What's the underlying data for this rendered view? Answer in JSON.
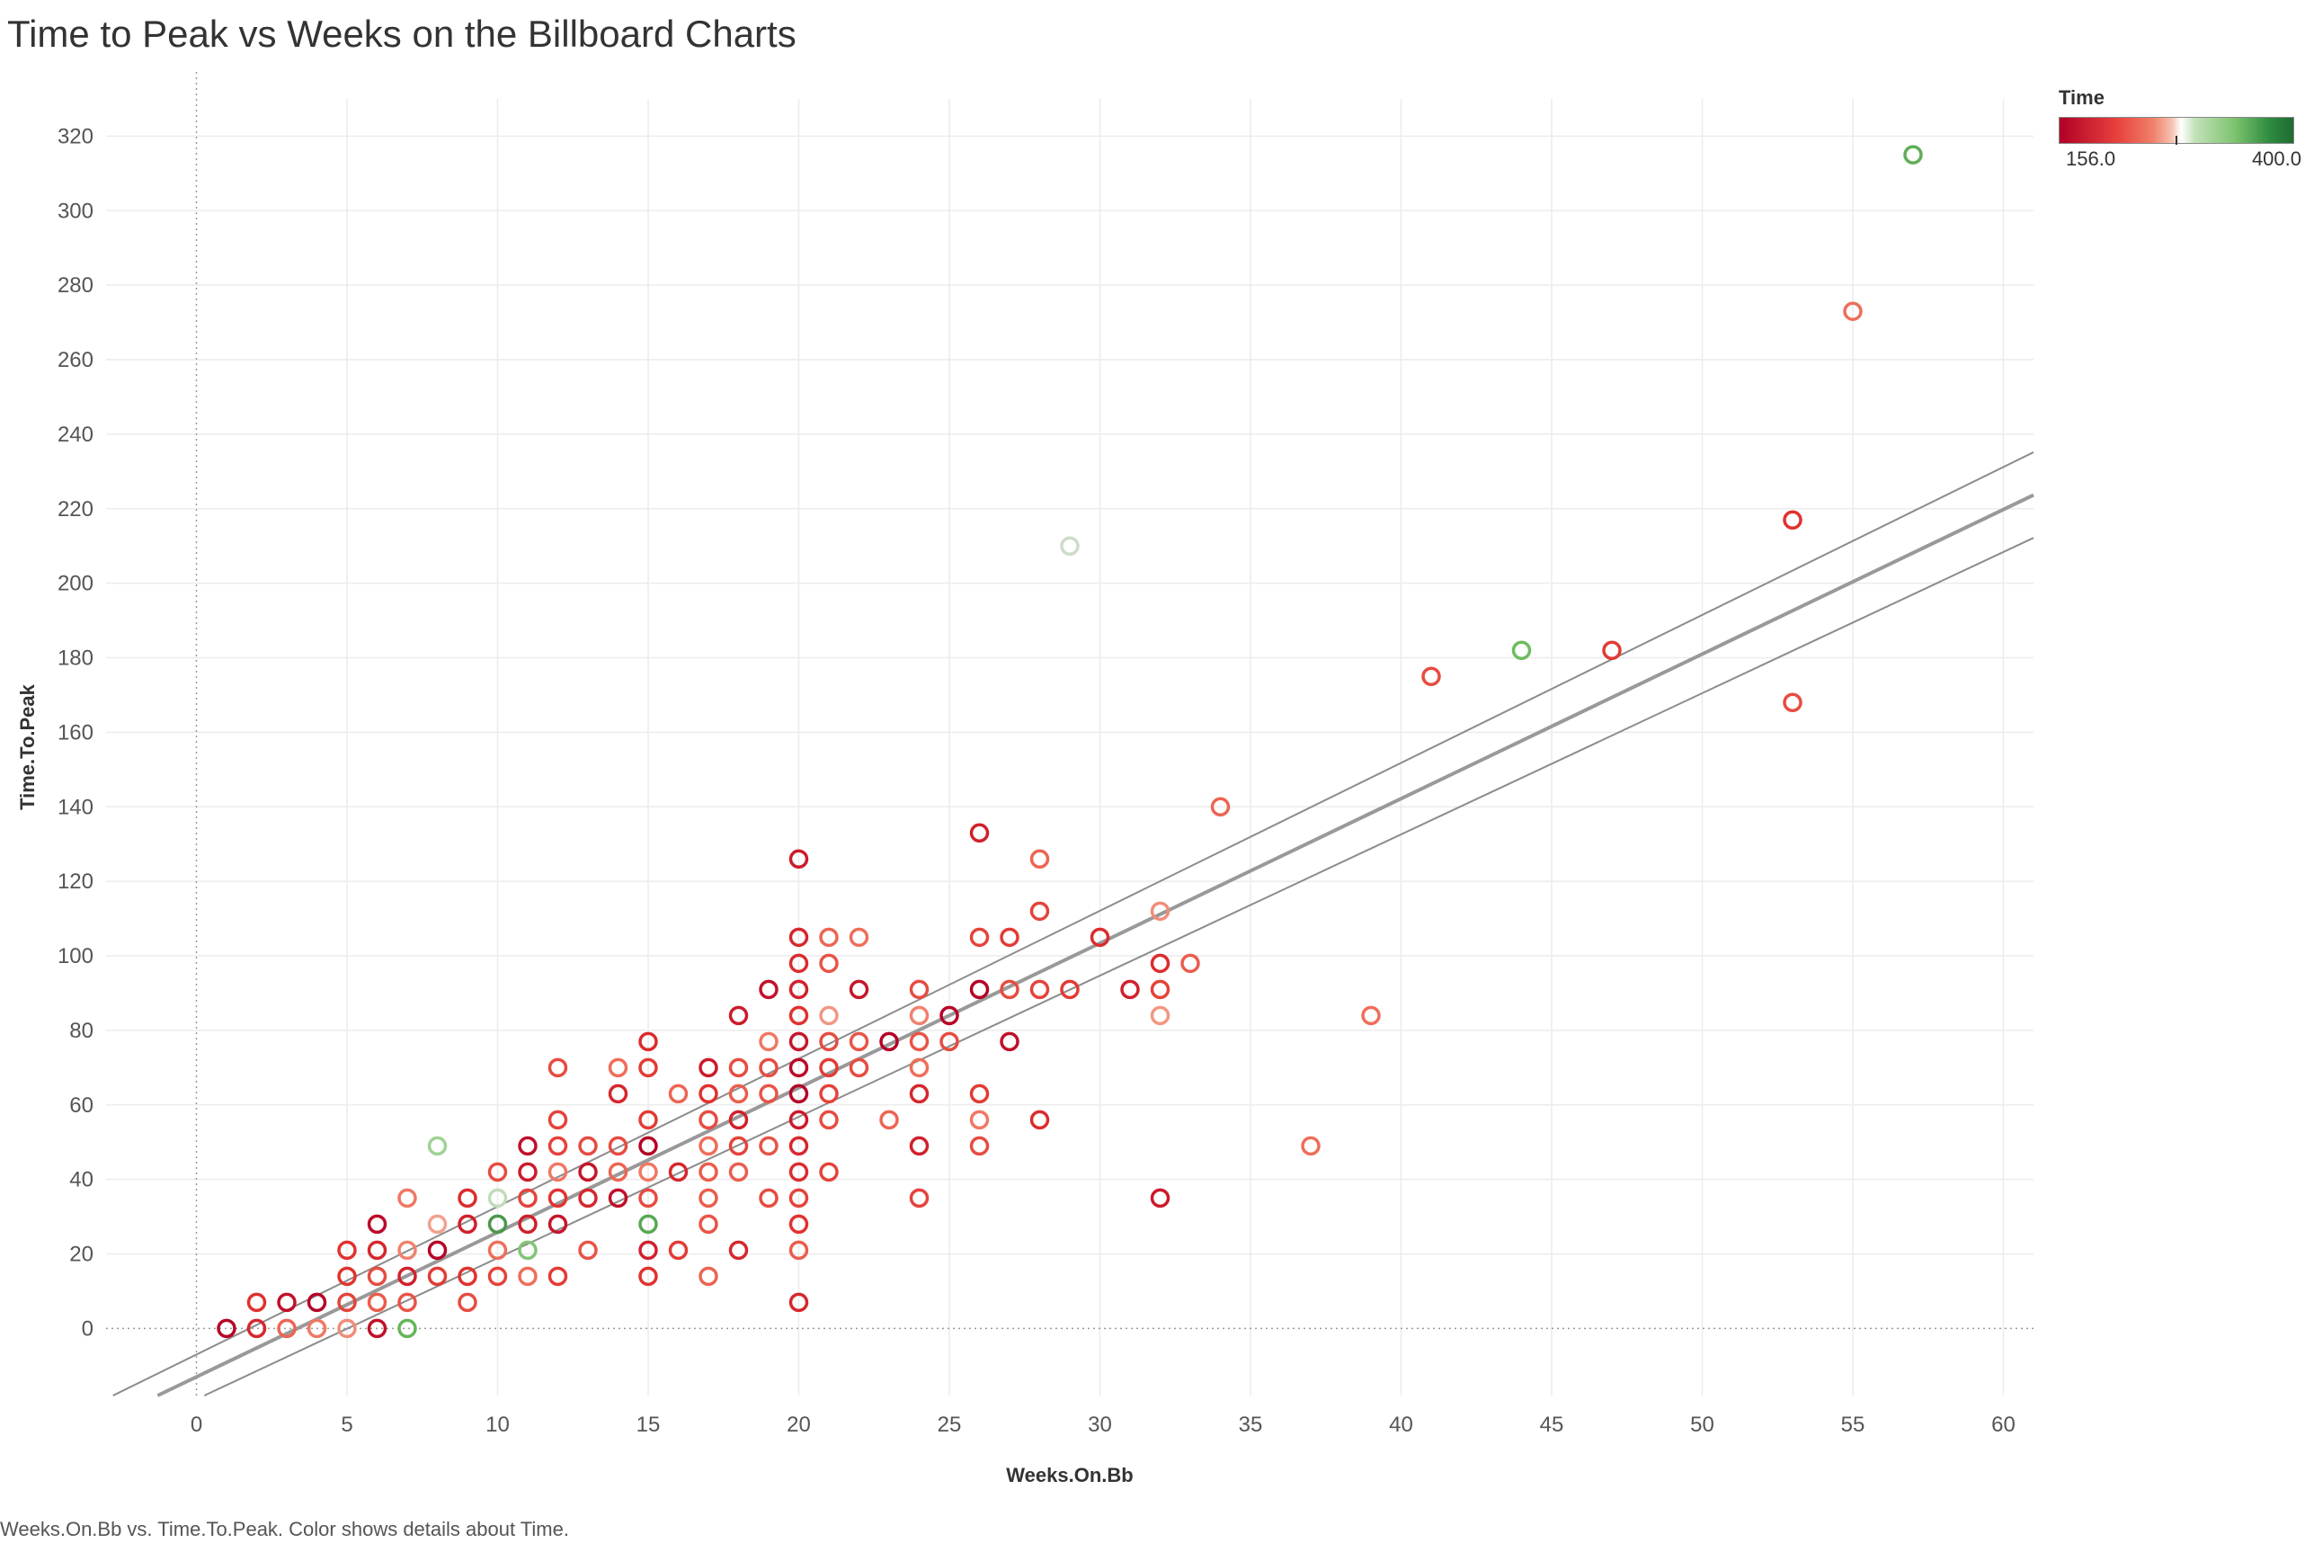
{
  "title": "Time to Peak vs Weeks on the Billboard Charts",
  "caption": "Weeks.On.Bb vs. Time.To.Peak.  Color shows details about Time.",
  "legend": {
    "title": "Time",
    "min_label": "156.0",
    "max_label": "400.0"
  },
  "chart_data": {
    "type": "scatter",
    "title": "Time to Peak vs Weeks on the Billboard Charts",
    "xlabel": "Weeks.On.Bb",
    "ylabel": "Time.To.Peak",
    "xlim": [
      -3,
      61
    ],
    "ylim": [
      -18,
      330
    ],
    "x_ticks": [
      0,
      5,
      10,
      15,
      20,
      25,
      30,
      35,
      40,
      45,
      50,
      55,
      60
    ],
    "y_ticks": [
      0,
      20,
      40,
      60,
      80,
      100,
      120,
      140,
      160,
      180,
      200,
      220,
      240,
      260,
      280,
      300,
      320
    ],
    "grid": true,
    "legend_position": "top-right",
    "color_scale": {
      "field": "Time",
      "min": 156.0,
      "max": 400.0,
      "low_color": "#b10026",
      "mid_color": "#ffffff",
      "high_color": "#1e6b32"
    },
    "trend_line": {
      "intercept": -13,
      "slope": 3.88
    },
    "confidence_band": {
      "upper": {
        "intercept": -7,
        "slope": 3.97
      },
      "lower": {
        "intercept": -19,
        "slope": 3.79
      }
    },
    "points": [
      {
        "x": 1,
        "y": 0,
        "time": 160
      },
      {
        "x": 2,
        "y": 7,
        "time": 200
      },
      {
        "x": 2,
        "y": 0,
        "time": 190
      },
      {
        "x": 3,
        "y": 7,
        "time": 170
      },
      {
        "x": 3,
        "y": 0,
        "time": 230
      },
      {
        "x": 4,
        "y": 7,
        "time": 160
      },
      {
        "x": 4,
        "y": 0,
        "time": 240
      },
      {
        "x": 5,
        "y": 21,
        "time": 200
      },
      {
        "x": 5,
        "y": 14,
        "time": 200
      },
      {
        "x": 5,
        "y": 7,
        "time": 210
      },
      {
        "x": 5,
        "y": 0,
        "time": 250
      },
      {
        "x": 6,
        "y": 28,
        "time": 165
      },
      {
        "x": 6,
        "y": 21,
        "time": 190
      },
      {
        "x": 6,
        "y": 14,
        "time": 215
      },
      {
        "x": 6,
        "y": 7,
        "time": 225
      },
      {
        "x": 6,
        "y": 0,
        "time": 170
      },
      {
        "x": 7,
        "y": 35,
        "time": 240
      },
      {
        "x": 7,
        "y": 21,
        "time": 245
      },
      {
        "x": 7,
        "y": 14,
        "time": 185
      },
      {
        "x": 7,
        "y": 7,
        "time": 220
      },
      {
        "x": 7,
        "y": 0,
        "time": 350
      },
      {
        "x": 8,
        "y": 49,
        "time": 320
      },
      {
        "x": 8,
        "y": 28,
        "time": 260
      },
      {
        "x": 8,
        "y": 21,
        "time": 160
      },
      {
        "x": 8,
        "y": 14,
        "time": 205
      },
      {
        "x": 9,
        "y": 35,
        "time": 195
      },
      {
        "x": 9,
        "y": 28,
        "time": 185
      },
      {
        "x": 9,
        "y": 14,
        "time": 200
      },
      {
        "x": 9,
        "y": 7,
        "time": 215
      },
      {
        "x": 10,
        "y": 42,
        "time": 215
      },
      {
        "x": 10,
        "y": 35,
        "time": 300
      },
      {
        "x": 10,
        "y": 28,
        "time": 370
      },
      {
        "x": 10,
        "y": 21,
        "time": 235
      },
      {
        "x": 10,
        "y": 14,
        "time": 210
      },
      {
        "x": 11,
        "y": 49,
        "time": 170
      },
      {
        "x": 11,
        "y": 42,
        "time": 180
      },
      {
        "x": 11,
        "y": 35,
        "time": 210
      },
      {
        "x": 11,
        "y": 28,
        "time": 185
      },
      {
        "x": 11,
        "y": 21,
        "time": 335
      },
      {
        "x": 11,
        "y": 14,
        "time": 235
      },
      {
        "x": 12,
        "y": 70,
        "time": 215
      },
      {
        "x": 12,
        "y": 56,
        "time": 210
      },
      {
        "x": 12,
        "y": 49,
        "time": 210
      },
      {
        "x": 12,
        "y": 42,
        "time": 240
      },
      {
        "x": 12,
        "y": 35,
        "time": 200
      },
      {
        "x": 12,
        "y": 28,
        "time": 175
      },
      {
        "x": 12,
        "y": 14,
        "time": 205
      },
      {
        "x": 13,
        "y": 49,
        "time": 215
      },
      {
        "x": 13,
        "y": 42,
        "time": 175
      },
      {
        "x": 13,
        "y": 35,
        "time": 190
      },
      {
        "x": 13,
        "y": 21,
        "time": 220
      },
      {
        "x": 14,
        "y": 70,
        "time": 235
      },
      {
        "x": 14,
        "y": 63,
        "time": 190
      },
      {
        "x": 14,
        "y": 49,
        "time": 215
      },
      {
        "x": 14,
        "y": 42,
        "time": 230
      },
      {
        "x": 14,
        "y": 35,
        "time": 170
      },
      {
        "x": 15,
        "y": 77,
        "time": 195
      },
      {
        "x": 15,
        "y": 70,
        "time": 205
      },
      {
        "x": 15,
        "y": 56,
        "time": 205
      },
      {
        "x": 15,
        "y": 49,
        "time": 158
      },
      {
        "x": 15,
        "y": 42,
        "time": 240
      },
      {
        "x": 15,
        "y": 35,
        "time": 215
      },
      {
        "x": 15,
        "y": 28,
        "time": 360
      },
      {
        "x": 15,
        "y": 21,
        "time": 185
      },
      {
        "x": 15,
        "y": 14,
        "time": 200
      },
      {
        "x": 16,
        "y": 63,
        "time": 230
      },
      {
        "x": 16,
        "y": 42,
        "time": 190
      },
      {
        "x": 16,
        "y": 21,
        "time": 205
      },
      {
        "x": 17,
        "y": 70,
        "time": 180
      },
      {
        "x": 17,
        "y": 63,
        "time": 200
      },
      {
        "x": 17,
        "y": 56,
        "time": 215
      },
      {
        "x": 17,
        "y": 49,
        "time": 235
      },
      {
        "x": 17,
        "y": 42,
        "time": 225
      },
      {
        "x": 17,
        "y": 35,
        "time": 225
      },
      {
        "x": 17,
        "y": 28,
        "time": 220
      },
      {
        "x": 17,
        "y": 14,
        "time": 230
      },
      {
        "x": 18,
        "y": 84,
        "time": 180
      },
      {
        "x": 18,
        "y": 70,
        "time": 215
      },
      {
        "x": 18,
        "y": 63,
        "time": 225
      },
      {
        "x": 18,
        "y": 56,
        "time": 185
      },
      {
        "x": 18,
        "y": 49,
        "time": 210
      },
      {
        "x": 18,
        "y": 42,
        "time": 225
      },
      {
        "x": 18,
        "y": 21,
        "time": 190
      },
      {
        "x": 19,
        "y": 91,
        "time": 170
      },
      {
        "x": 19,
        "y": 77,
        "time": 240
      },
      {
        "x": 19,
        "y": 70,
        "time": 215
      },
      {
        "x": 19,
        "y": 63,
        "time": 220
      },
      {
        "x": 19,
        "y": 49,
        "time": 220
      },
      {
        "x": 19,
        "y": 35,
        "time": 215
      },
      {
        "x": 20,
        "y": 126,
        "time": 180
      },
      {
        "x": 20,
        "y": 105,
        "time": 190
      },
      {
        "x": 20,
        "y": 98,
        "time": 195
      },
      {
        "x": 20,
        "y": 91,
        "time": 185
      },
      {
        "x": 20,
        "y": 84,
        "time": 200
      },
      {
        "x": 20,
        "y": 77,
        "time": 175
      },
      {
        "x": 20,
        "y": 70,
        "time": 165
      },
      {
        "x": 20,
        "y": 63,
        "time": 160
      },
      {
        "x": 20,
        "y": 56,
        "time": 180
      },
      {
        "x": 20,
        "y": 49,
        "time": 190
      },
      {
        "x": 20,
        "y": 42,
        "time": 195
      },
      {
        "x": 20,
        "y": 35,
        "time": 210
      },
      {
        "x": 20,
        "y": 28,
        "time": 200
      },
      {
        "x": 20,
        "y": 21,
        "time": 225
      },
      {
        "x": 20,
        "y": 7,
        "time": 190
      },
      {
        "x": 21,
        "y": 105,
        "time": 230
      },
      {
        "x": 21,
        "y": 98,
        "time": 220
      },
      {
        "x": 21,
        "y": 84,
        "time": 255
      },
      {
        "x": 21,
        "y": 77,
        "time": 215
      },
      {
        "x": 21,
        "y": 70,
        "time": 205
      },
      {
        "x": 21,
        "y": 63,
        "time": 210
      },
      {
        "x": 21,
        "y": 56,
        "time": 215
      },
      {
        "x": 21,
        "y": 42,
        "time": 210
      },
      {
        "x": 22,
        "y": 105,
        "time": 235
      },
      {
        "x": 22,
        "y": 91,
        "time": 175
      },
      {
        "x": 22,
        "y": 77,
        "time": 220
      },
      {
        "x": 22,
        "y": 70,
        "time": 215
      },
      {
        "x": 23,
        "y": 77,
        "time": 158
      },
      {
        "x": 23,
        "y": 56,
        "time": 230
      },
      {
        "x": 24,
        "y": 91,
        "time": 215
      },
      {
        "x": 24,
        "y": 84,
        "time": 245
      },
      {
        "x": 24,
        "y": 77,
        "time": 220
      },
      {
        "x": 24,
        "y": 70,
        "time": 235
      },
      {
        "x": 24,
        "y": 63,
        "time": 190
      },
      {
        "x": 24,
        "y": 49,
        "time": 185
      },
      {
        "x": 24,
        "y": 35,
        "time": 210
      },
      {
        "x": 25,
        "y": 84,
        "time": 160
      },
      {
        "x": 25,
        "y": 77,
        "time": 215
      },
      {
        "x": 26,
        "y": 133,
        "time": 185
      },
      {
        "x": 26,
        "y": 105,
        "time": 210
      },
      {
        "x": 26,
        "y": 91,
        "time": 158
      },
      {
        "x": 26,
        "y": 63,
        "time": 205
      },
      {
        "x": 26,
        "y": 56,
        "time": 240
      },
      {
        "x": 26,
        "y": 49,
        "time": 215
      },
      {
        "x": 27,
        "y": 105,
        "time": 205
      },
      {
        "x": 27,
        "y": 91,
        "time": 215
      },
      {
        "x": 27,
        "y": 77,
        "time": 170
      },
      {
        "x": 28,
        "y": 126,
        "time": 230
      },
      {
        "x": 28,
        "y": 112,
        "time": 210
      },
      {
        "x": 28,
        "y": 91,
        "time": 210
      },
      {
        "x": 28,
        "y": 56,
        "time": 195
      },
      {
        "x": 29,
        "y": 210,
        "time": 290
      },
      {
        "x": 29,
        "y": 91,
        "time": 205
      },
      {
        "x": 30,
        "y": 105,
        "time": 195
      },
      {
        "x": 31,
        "y": 91,
        "time": 185
      },
      {
        "x": 32,
        "y": 112,
        "time": 250
      },
      {
        "x": 32,
        "y": 98,
        "time": 195
      },
      {
        "x": 32,
        "y": 91,
        "time": 210
      },
      {
        "x": 32,
        "y": 84,
        "time": 255
      },
      {
        "x": 32,
        "y": 35,
        "time": 180
      },
      {
        "x": 33,
        "y": 98,
        "time": 225
      },
      {
        "x": 34,
        "y": 140,
        "time": 230
      },
      {
        "x": 37,
        "y": 49,
        "time": 235
      },
      {
        "x": 39,
        "y": 84,
        "time": 235
      },
      {
        "x": 41,
        "y": 175,
        "time": 215
      },
      {
        "x": 44,
        "y": 182,
        "time": 345
      },
      {
        "x": 47,
        "y": 182,
        "time": 205
      },
      {
        "x": 53,
        "y": 217,
        "time": 200
      },
      {
        "x": 53,
        "y": 168,
        "time": 215
      },
      {
        "x": 55,
        "y": 273,
        "time": 235
      },
      {
        "x": 57,
        "y": 315,
        "time": 355
      }
    ]
  }
}
